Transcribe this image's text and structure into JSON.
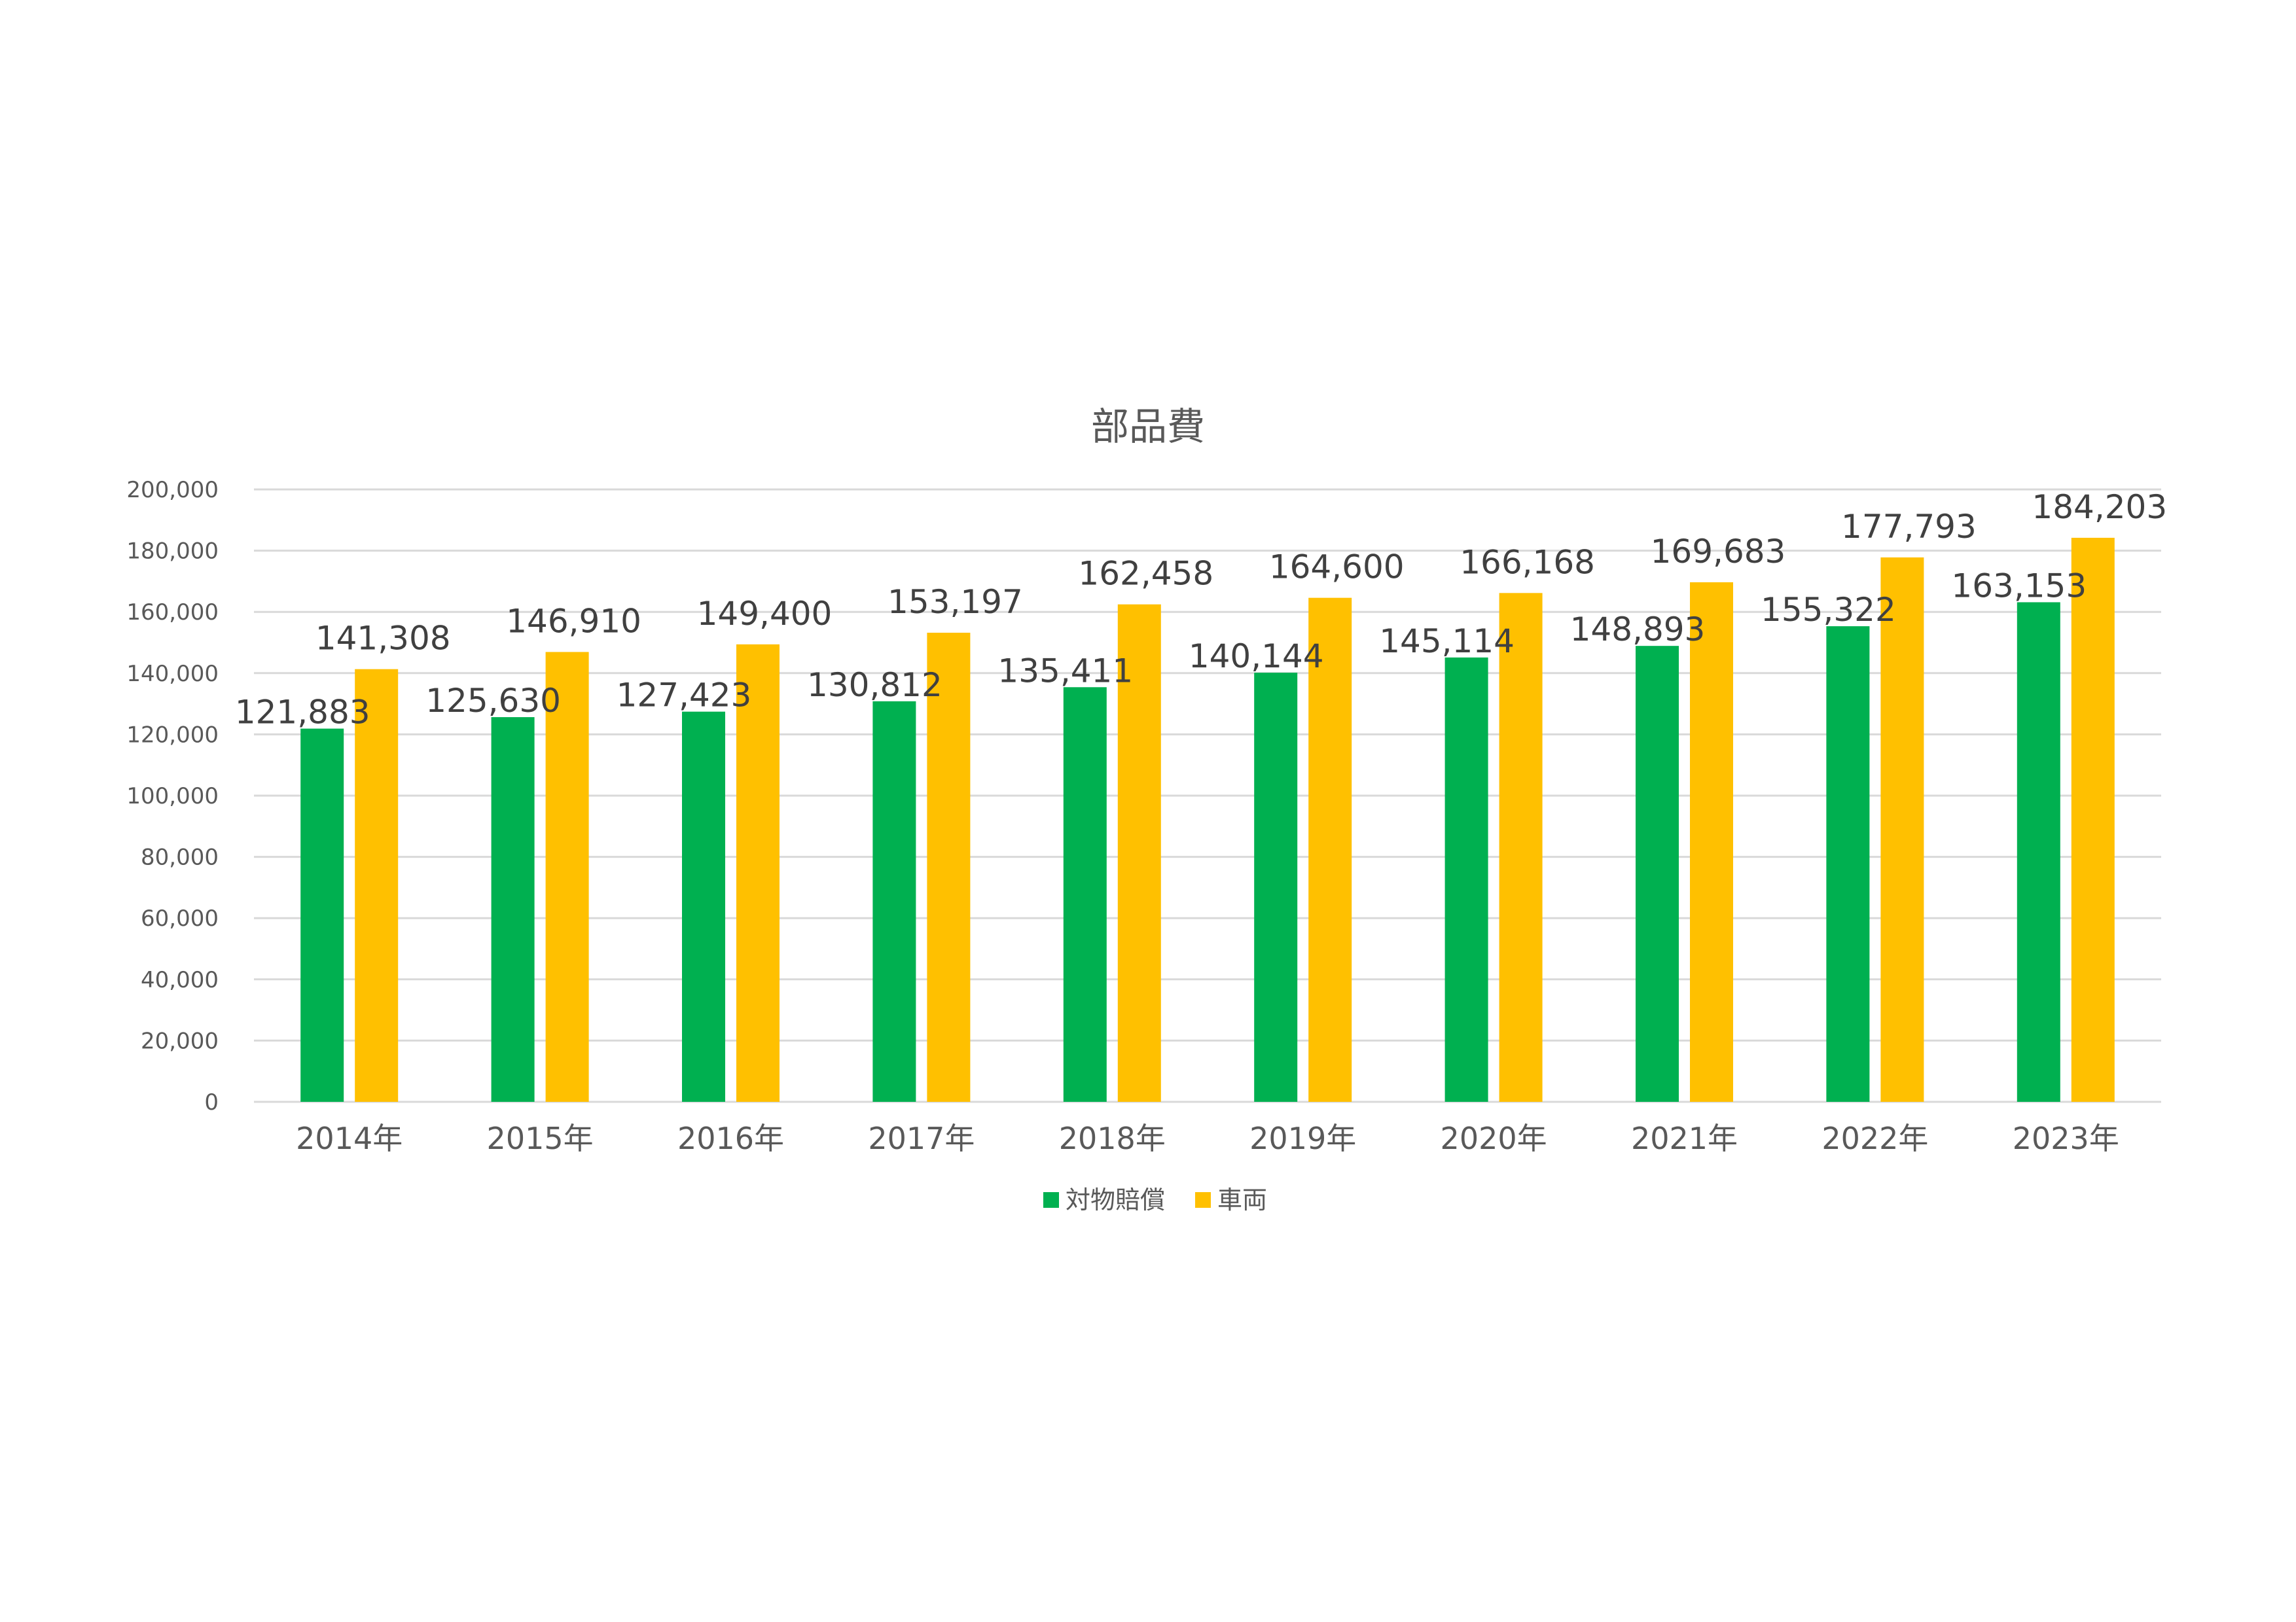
{
  "chart_data": {
    "type": "bar",
    "title": "部品費",
    "categories": [
      "2014年",
      "2015年",
      "2016年",
      "2017年",
      "2018年",
      "2019年",
      "2020年",
      "2021年",
      "2022年",
      "2023年"
    ],
    "series": [
      {
        "name": "対物賠償",
        "color": "#00b050",
        "values": [
          121883,
          125630,
          127423,
          130812,
          135411,
          140144,
          145114,
          148893,
          155322,
          163153
        ],
        "labels": [
          "121,883",
          "125,630",
          "127,423",
          "130,812",
          "135,411",
          "140,144",
          "145,114",
          "148,893",
          "155,322",
          "163,153"
        ]
      },
      {
        "name": "車両",
        "color": "#ffc000",
        "values": [
          141308,
          146910,
          149400,
          153197,
          162458,
          164600,
          166168,
          169683,
          177793,
          184203
        ],
        "labels": [
          "141,308",
          "146,910",
          "149,400",
          "153,197",
          "162,458",
          "164,600",
          "166,168",
          "169,683",
          "177,793",
          "184,203"
        ]
      }
    ],
    "yticks": [
      "0",
      "20,000",
      "40,000",
      "60,000",
      "80,000",
      "100,000",
      "120,000",
      "140,000",
      "160,000",
      "180,000",
      "200,000"
    ],
    "ylim": [
      0,
      200000
    ],
    "grid": true,
    "legend_position": "bottom"
  }
}
